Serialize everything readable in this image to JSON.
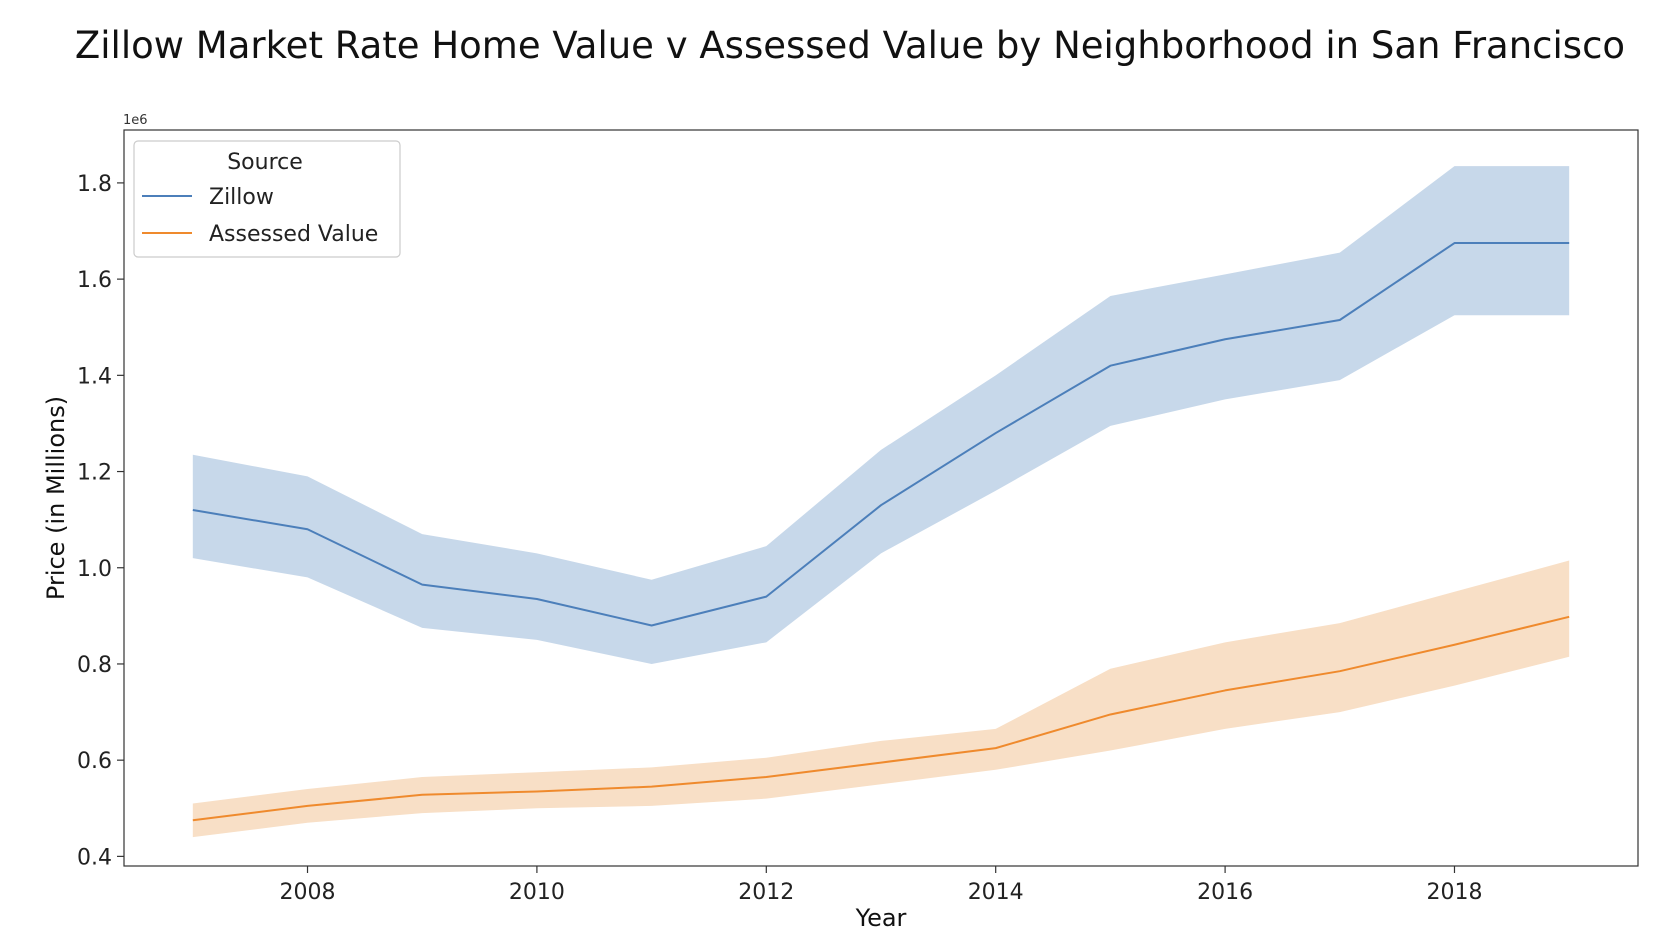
{
  "chart_data": {
    "type": "line",
    "title": "Zillow Market Rate Home Value v Assessed Value by Neighborhood in San Francisco",
    "xlabel": "Year",
    "ylabel": "Price (in Millions)",
    "y_offset_label": "1e6",
    "xlim": [
      2006.4,
      2019.6
    ],
    "ylim": [
      0.38,
      1.91
    ],
    "x_ticks": [
      2008,
      2010,
      2012,
      2014,
      2016,
      2018
    ],
    "x_tick_labels": [
      "2008",
      "2010",
      "2012",
      "2014",
      "2016",
      "2018"
    ],
    "y_ticks": [
      0.4,
      0.6,
      0.8,
      1.0,
      1.2,
      1.4,
      1.6,
      1.8
    ],
    "y_tick_labels": [
      "0.4",
      "0.6",
      "0.8",
      "1.0",
      "1.2",
      "1.4",
      "1.6",
      "1.8"
    ],
    "grid": false,
    "legend": {
      "title": "Source",
      "placement": "top-left"
    },
    "x": [
      2007,
      2008,
      2009,
      2010,
      2011,
      2012,
      2013,
      2014,
      2015,
      2016,
      2017,
      2018,
      2019
    ],
    "series": [
      {
        "name": "Zillow",
        "color": "#4c7fba",
        "band_color": "#c7d8ea",
        "values": [
          1.12,
          1.08,
          0.965,
          0.935,
          0.88,
          0.94,
          1.13,
          1.28,
          1.42,
          1.475,
          1.515,
          1.675,
          1.675
        ],
        "lower": [
          1.02,
          0.98,
          0.875,
          0.85,
          0.8,
          0.845,
          1.03,
          1.16,
          1.295,
          1.35,
          1.39,
          1.525,
          1.525
        ],
        "upper": [
          1.235,
          1.19,
          1.07,
          1.03,
          0.975,
          1.045,
          1.245,
          1.4,
          1.565,
          1.61,
          1.655,
          1.835,
          1.835
        ]
      },
      {
        "name": "Assessed Value",
        "color": "#ef8a2d",
        "band_color": "#f8dfc6",
        "values": [
          0.475,
          0.505,
          0.528,
          0.535,
          0.545,
          0.565,
          0.595,
          0.625,
          0.695,
          0.745,
          0.785,
          0.84,
          0.898
        ],
        "lower": [
          0.44,
          0.47,
          0.49,
          0.5,
          0.505,
          0.52,
          0.55,
          0.58,
          0.62,
          0.665,
          0.7,
          0.755,
          0.815
        ],
        "upper": [
          0.51,
          0.54,
          0.565,
          0.575,
          0.585,
          0.605,
          0.64,
          0.665,
          0.79,
          0.845,
          0.885,
          0.95,
          1.015
        ]
      }
    ]
  }
}
